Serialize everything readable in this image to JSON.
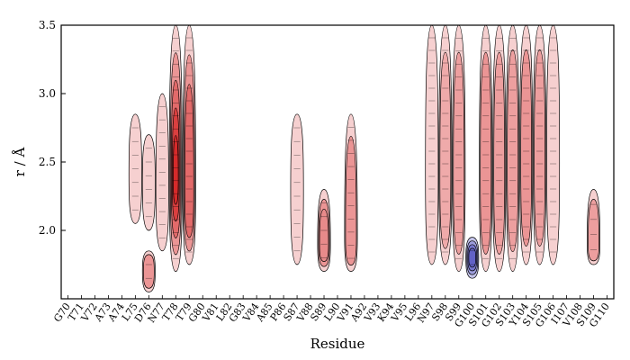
{
  "chart_data": {
    "type": "heatmap",
    "xlabel": "Residue",
    "ylabel": "r / Å",
    "ylim": [
      1.5,
      3.5
    ],
    "yticks": [
      "2.0",
      "2.5",
      "3.0",
      "3.5"
    ],
    "categories": [
      "G70",
      "T71",
      "V72",
      "A73",
      "A74",
      "L75",
      "D76",
      "N77",
      "T78",
      "T79",
      "G80",
      "V81",
      "L82",
      "G83",
      "V84",
      "A85",
      "P86",
      "S87",
      "V88",
      "S89",
      "L90",
      "V91",
      "A92",
      "V93",
      "K94",
      "V95",
      "L96",
      "N97",
      "S98",
      "S99",
      "G100",
      "S101",
      "G102",
      "S103",
      "Y104",
      "S105",
      "G106",
      "I107",
      "V108",
      "S109",
      "G110"
    ],
    "colormap": {
      "negative": "#3b3bb8",
      "zero": "#ffffff",
      "positive": "#d62a2a"
    },
    "contour_line_color": "#000000",
    "grid": false,
    "columns": [
      {
        "residue": "L75",
        "r_range": [
          2.05,
          2.85
        ],
        "peak_r": 2.4,
        "intensity": 0.35
      },
      {
        "residue": "D76",
        "r_range": [
          1.55,
          1.85
        ],
        "peak_r": 1.7,
        "intensity": 0.5
      },
      {
        "residue": "D76",
        "r_range": [
          2.0,
          2.7
        ],
        "peak_r": 2.35,
        "intensity": 0.2
      },
      {
        "residue": "N77",
        "r_range": [
          1.85,
          3.0
        ],
        "peak_r": 2.3,
        "intensity": 0.25
      },
      {
        "residue": "T78",
        "r_range": [
          1.7,
          3.5
        ],
        "peak_r": 2.38,
        "intensity": 1.0
      },
      {
        "residue": "T79",
        "r_range": [
          1.75,
          3.5
        ],
        "peak_r": 2.3,
        "intensity": 0.7
      },
      {
        "residue": "S87",
        "r_range": [
          1.75,
          2.85
        ],
        "peak_r": 2.3,
        "intensity": 0.3
      },
      {
        "residue": "S89",
        "r_range": [
          1.7,
          2.3
        ],
        "peak_r": 1.9,
        "intensity": 0.55
      },
      {
        "residue": "V91",
        "r_range": [
          1.7,
          2.85
        ],
        "peak_r": 1.95,
        "intensity": 0.5
      },
      {
        "residue": "N97",
        "r_range": [
          1.75,
          3.5
        ],
        "peak_r": 2.4,
        "intensity": 0.3
      },
      {
        "residue": "S98",
        "r_range": [
          1.75,
          3.5
        ],
        "peak_r": 2.4,
        "intensity": 0.4
      },
      {
        "residue": "S99",
        "r_range": [
          1.7,
          3.5
        ],
        "peak_r": 2.4,
        "intensity": 0.45
      },
      {
        "residue": "G100",
        "r_range": [
          1.65,
          1.95
        ],
        "peak_r": 1.8,
        "intensity": -0.8
      },
      {
        "residue": "S101",
        "r_range": [
          1.7,
          3.5
        ],
        "peak_r": 2.4,
        "intensity": 0.5
      },
      {
        "residue": "G102",
        "r_range": [
          1.7,
          3.5
        ],
        "peak_r": 2.4,
        "intensity": 0.45
      },
      {
        "residue": "S103",
        "r_range": [
          1.7,
          3.5
        ],
        "peak_r": 2.5,
        "intensity": 0.45
      },
      {
        "residue": "Y104",
        "r_range": [
          1.75,
          3.5
        ],
        "peak_r": 2.5,
        "intensity": 0.5
      },
      {
        "residue": "S105",
        "r_range": [
          1.75,
          3.5
        ],
        "peak_r": 2.5,
        "intensity": 0.45
      },
      {
        "residue": "G106",
        "r_range": [
          1.75,
          3.5
        ],
        "peak_r": 2.5,
        "intensity": 0.3
      },
      {
        "residue": "S109",
        "r_range": [
          1.75,
          2.3
        ],
        "peak_r": 1.9,
        "intensity": 0.45
      }
    ]
  }
}
